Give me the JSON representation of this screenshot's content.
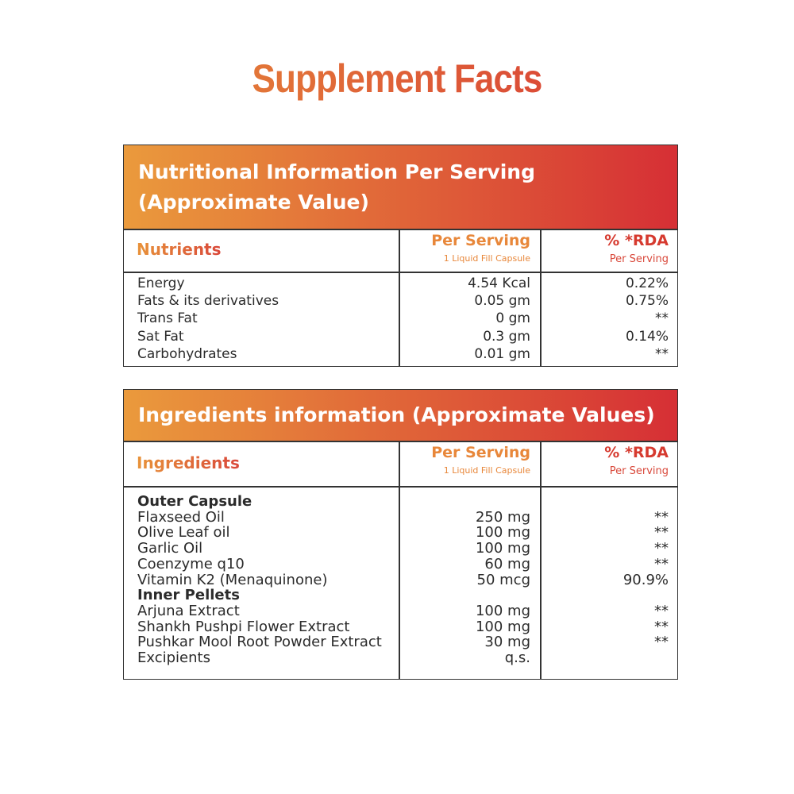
{
  "title": "Supplement Facts",
  "nutrition_table": {
    "title_lines": [
      "Nutritional Information Per Serving",
      "(Approximate Value)"
    ],
    "columns": {
      "name": "Nutrients",
      "per_serving": "Per Serving",
      "per_serving_note": "1 Liquid Fill Capsule",
      "rda": "% *RDA",
      "rda_note": "Per Serving"
    },
    "rows": [
      [
        "Energy",
        "4.54 Kcal",
        "0.22%"
      ],
      [
        "Fats & its derivatives",
        "0.05 gm",
        "0.75%"
      ],
      [
        "Trans Fat",
        "0 gm",
        "**"
      ],
      [
        "Sat Fat",
        "0.3 gm",
        "0.14%"
      ],
      [
        "Carbohydrates",
        "0.01 gm",
        "**"
      ]
    ]
  },
  "ingredients_table": {
    "title_lines": [
      "Ingredients information (Approximate Values)"
    ],
    "columns": {
      "name": "Ingredients",
      "per_serving": "Per Serving",
      "per_serving_note": "1 Liquid Fill Capsule",
      "rda": "% *RDA",
      "rda_note": "Per Serving"
    },
    "sections": [
      {
        "heading": "Outer Capsule",
        "rows": [
          [
            "Flaxseed Oil",
            "250 mg",
            "**"
          ],
          [
            "Olive Leaf oil",
            "100 mg",
            "**"
          ],
          [
            "Garlic Oil",
            "100 mg",
            "**"
          ],
          [
            "Coenzyme q10",
            "60 mg",
            "**"
          ],
          [
            "Vitamin K2 (Menaquinone)",
            "50 mcg",
            "90.9%"
          ]
        ]
      },
      {
        "heading": "Inner Pellets",
        "rows": [
          [
            "Arjuna Extract",
            "100 mg",
            "**"
          ],
          [
            "Shankh Pushpi Flower Extract",
            "100 mg",
            "**"
          ],
          [
            "Pushkar Mool Root Powder Extract",
            "30 mg",
            "**"
          ],
          [
            "Excipients",
            "q.s."
          ]
        ]
      }
    ]
  }
}
